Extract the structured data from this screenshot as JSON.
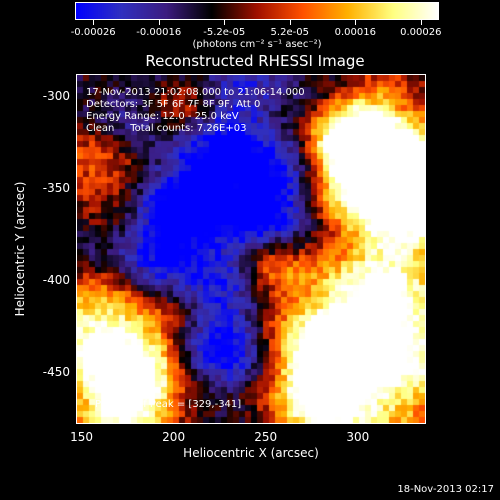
{
  "colorbar": {
    "labels": [
      "-0.00026",
      "-0.00016",
      "-5.2e-05",
      "5.2e-05",
      "0.00016",
      "0.00026"
    ],
    "units": "(photons cm⁻² s⁻¹ asec⁻²)",
    "colors": [
      "#0000ff",
      "#3030c0",
      "#3c1c80",
      "#000000",
      "#a01000",
      "#ff5000",
      "#ffb000",
      "#ffff80",
      "#ffffff"
    ]
  },
  "plot": {
    "title": "Reconstructed RHESSI Image",
    "time_range": "17-Nov-2013 21:02:08.000 to 21:06:14.000",
    "detectors": "Detectors: 3F 5F 6F 7F 8F 9F, Att 0",
    "energy_range": "Energy Range: 12.0 - 25.0 keV",
    "clean_counts": "Clean     Total counts: 7.26E+03",
    "peak_position": "Position of Peak = [329,-341]",
    "xlabel": "Heliocentric X (arcsec)",
    "ylabel": "Heliocentric Y (arcsec)",
    "x_ticks": [
      "150",
      "200",
      "250",
      "300"
    ],
    "y_ticks": [
      "-300",
      "-350",
      "-400",
      "-450"
    ],
    "xlim": [
      147,
      337
    ],
    "ylim": [
      -478,
      -288
    ]
  },
  "footer": {
    "timestamp": "18-Nov-2013 02:17"
  }
}
